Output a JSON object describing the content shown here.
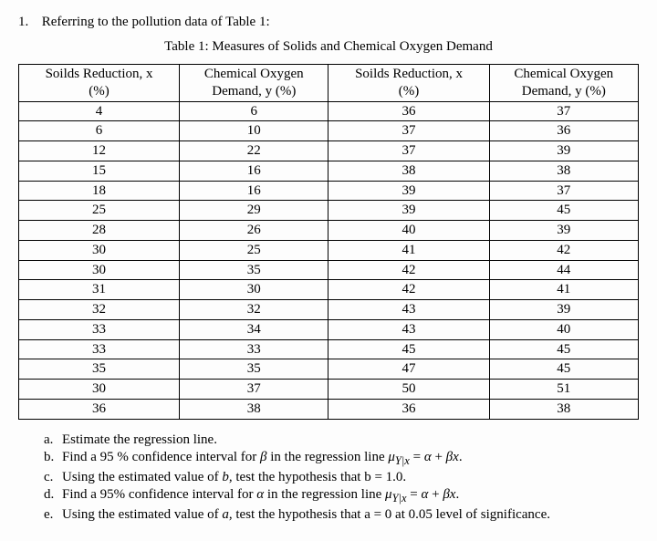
{
  "question": {
    "number": "1.",
    "text": "Referring to the pollution data of Table 1:"
  },
  "table": {
    "caption": "Table 1: Measures of Solids and Chemical Oxygen Demand",
    "headers": {
      "c1_l1": "Soilds Reduction, x",
      "c1_l2": "(%)",
      "c2_l1": "Chemical Oxygen",
      "c2_l2": "Demand, y (%)",
      "c3_l1": "Soilds Reduction, x",
      "c3_l2": "(%)",
      "c4_l1": "Chemical Oxygen",
      "c4_l2": "Demand, y (%)"
    },
    "rows": [
      [
        "4",
        "6",
        "36",
        "37"
      ],
      [
        "6",
        "10",
        "37",
        "36"
      ],
      [
        "12",
        "22",
        "37",
        "39"
      ],
      [
        "15",
        "16",
        "38",
        "38"
      ],
      [
        "18",
        "16",
        "39",
        "37"
      ],
      [
        "25",
        "29",
        "39",
        "45"
      ],
      [
        "28",
        "26",
        "40",
        "39"
      ],
      [
        "30",
        "25",
        "41",
        "42"
      ],
      [
        "30",
        "35",
        "42",
        "44"
      ],
      [
        "31",
        "30",
        "42",
        "41"
      ],
      [
        "32",
        "32",
        "43",
        "39"
      ],
      [
        "33",
        "34",
        "43",
        "40"
      ],
      [
        "33",
        "33",
        "45",
        "45"
      ],
      [
        "35",
        "35",
        "47",
        "45"
      ],
      [
        "30",
        "37",
        "50",
        "51"
      ],
      [
        "36",
        "38",
        "36",
        "38"
      ]
    ]
  },
  "subs": {
    "a": {
      "lbl": "a.",
      "txt": "Estimate the regression line."
    },
    "b": {
      "lbl": "b.",
      "txt": "Find a 95 % confidence interval for β in the regression line μ_{Y|x} = α + βx."
    },
    "c": {
      "lbl": "c.",
      "txt": "Using the estimated value of b, test the hypothesis that b = 1.0."
    },
    "d": {
      "lbl": "d.",
      "txt": "Find a 95% confidence interval for α in the regression line μ_{Y|x} = α + βx."
    },
    "e": {
      "lbl": "e.",
      "txt": "Using the estimated value of a, test the hypothesis that a = 0 at 0.05 level of significance."
    }
  }
}
